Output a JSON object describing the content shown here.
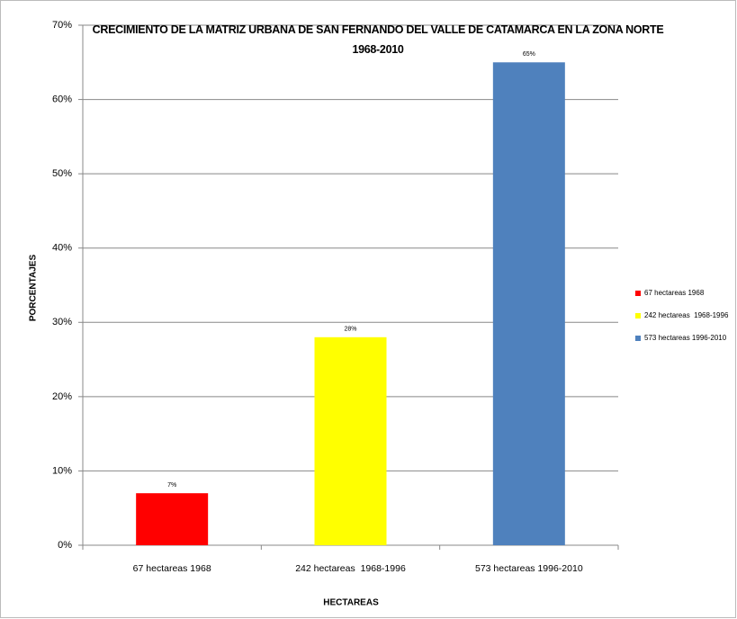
{
  "chart_data": {
    "type": "bar",
    "title": "CRECIMIENTO DE LA MATRIZ URBANA DE SAN FERNANDO DEL VALLE DE CATAMARCA EN LA ZONA NORTE 1968-2010",
    "x_label": "HECTAREAS",
    "y_label": "PORCENTAJES",
    "categories": [
      "67 hectareas 1968",
      "242 hectareas  1968-1996",
      "573 hectareas 1996-2010"
    ],
    "values": [
      7,
      28,
      65
    ],
    "value_labels": [
      "7%",
      "28%",
      "65%"
    ],
    "colors": [
      "#ff0000",
      "#ffff00",
      "#4f81bd"
    ],
    "ylim": [
      0,
      70
    ],
    "yticks": [
      {
        "value": 0,
        "label": "0%"
      },
      {
        "value": 10,
        "label": "10%"
      },
      {
        "value": 20,
        "label": "20%"
      },
      {
        "value": 30,
        "label": "30%"
      },
      {
        "value": 40,
        "label": "40%"
      },
      {
        "value": 50,
        "label": "50%"
      },
      {
        "value": 60,
        "label": "60%"
      },
      {
        "value": 70,
        "label": "70%"
      }
    ],
    "grid": true,
    "legend": "right"
  }
}
